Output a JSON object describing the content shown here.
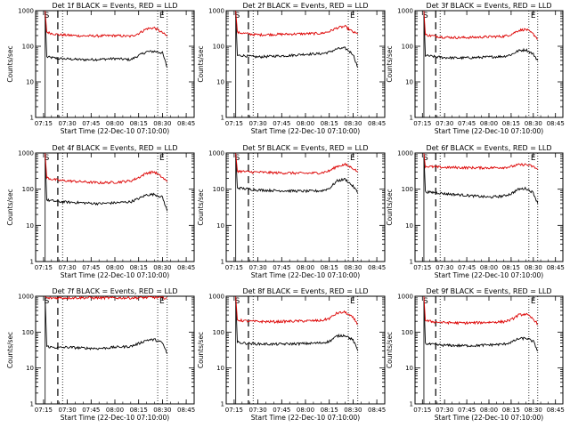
{
  "figure": {
    "xlabel": "Start Time (22-Dec-10 07:10:00)",
    "ylabel": "Counts/sec",
    "ytick_labels": [
      "1",
      "10",
      "100",
      "1000"
    ],
    "xtick_labels": [
      "07:15",
      "07:30",
      "07:45",
      "08:00",
      "08:15",
      "08:30",
      "08:45"
    ],
    "marker_start": "S",
    "marker_end": "E",
    "colors": {
      "events": "#000000",
      "lld": "#dd0000",
      "axes": "#000000"
    }
  },
  "chart_data": [
    {
      "type": "line",
      "title": "Det 1f BLACK = Events, RED = LLD",
      "ylim": [
        1,
        1000
      ],
      "yscale": "log",
      "grid": false,
      "x": [
        "07:17",
        "07:20",
        "07:25",
        "07:30",
        "07:40",
        "07:50",
        "08:00",
        "08:10",
        "08:15",
        "08:20",
        "08:25",
        "08:30",
        "08:33"
      ],
      "series": [
        {
          "name": "Events",
          "values": [
            50,
            48,
            45,
            44,
            42,
            43,
            45,
            42,
            55,
            70,
            72,
            65,
            25
          ]
        },
        {
          "name": "LLD",
          "values": [
            250,
            230,
            210,
            205,
            195,
            195,
            200,
            190,
            230,
            310,
            330,
            240,
            190
          ]
        }
      ]
    },
    {
      "type": "line",
      "title": "Det 2f BLACK = Events, RED = LLD",
      "ylim": [
        1,
        1000
      ],
      "yscale": "log",
      "grid": false,
      "x": [
        "07:17",
        "07:20",
        "07:25",
        "07:30",
        "07:40",
        "07:50",
        "08:00",
        "08:10",
        "08:15",
        "08:20",
        "08:25",
        "08:30",
        "08:33"
      ],
      "series": [
        {
          "name": "Events",
          "values": [
            55,
            55,
            52,
            50,
            53,
            55,
            60,
            62,
            68,
            85,
            88,
            60,
            25
          ]
        },
        {
          "name": "LLD",
          "values": [
            245,
            235,
            220,
            210,
            215,
            220,
            225,
            230,
            260,
            330,
            360,
            250,
            220
          ]
        }
      ]
    },
    {
      "type": "line",
      "title": "Det 3f BLACK = Events, RED = LLD",
      "ylim": [
        1,
        1000
      ],
      "yscale": "log",
      "grid": false,
      "x": [
        "07:17",
        "07:20",
        "07:25",
        "07:30",
        "07:40",
        "07:50",
        "08:00",
        "08:10",
        "08:15",
        "08:20",
        "08:25",
        "08:30",
        "08:33"
      ],
      "series": [
        {
          "name": "Events",
          "values": [
            55,
            53,
            50,
            48,
            47,
            48,
            50,
            52,
            58,
            75,
            80,
            60,
            40
          ]
        },
        {
          "name": "LLD",
          "values": [
            210,
            200,
            190,
            180,
            175,
            178,
            185,
            190,
            215,
            280,
            300,
            220,
            160
          ]
        }
      ]
    },
    {
      "type": "line",
      "title": "Det 4f BLACK = Events, RED = LLD",
      "ylim": [
        1,
        1000
      ],
      "yscale": "log",
      "grid": false,
      "x": [
        "07:17",
        "07:20",
        "07:25",
        "07:30",
        "07:40",
        "07:50",
        "08:00",
        "08:10",
        "08:15",
        "08:20",
        "08:25",
        "08:30",
        "08:33"
      ],
      "series": [
        {
          "name": "Events",
          "values": [
            50,
            48,
            45,
            44,
            42,
            40,
            42,
            45,
            55,
            70,
            72,
            60,
            25
          ]
        },
        {
          "name": "LLD",
          "values": [
            210,
            190,
            175,
            170,
            160,
            150,
            155,
            170,
            210,
            280,
            300,
            210,
            160
          ]
        }
      ]
    },
    {
      "type": "line",
      "title": "Det 5f BLACK = Events, RED = LLD",
      "ylim": [
        1,
        1000
      ],
      "yscale": "log",
      "grid": false,
      "x": [
        "07:17",
        "07:20",
        "07:25",
        "07:30",
        "07:40",
        "07:50",
        "08:00",
        "08:10",
        "08:15",
        "08:20",
        "08:25",
        "08:30",
        "08:33"
      ],
      "series": [
        {
          "name": "Events",
          "values": [
            110,
            105,
            100,
            95,
            92,
            90,
            88,
            90,
            105,
            170,
            190,
            120,
            80
          ]
        },
        {
          "name": "LLD",
          "values": [
            320,
            310,
            300,
            295,
            285,
            280,
            275,
            285,
            320,
            430,
            480,
            380,
            300
          ]
        }
      ]
    },
    {
      "type": "line",
      "title": "Det 6f BLACK = Events, RED = LLD",
      "ylim": [
        1,
        1000
      ],
      "yscale": "log",
      "grid": false,
      "x": [
        "07:17",
        "07:20",
        "07:25",
        "07:30",
        "07:40",
        "07:50",
        "08:00",
        "08:10",
        "08:15",
        "08:20",
        "08:25",
        "08:30",
        "08:33"
      ],
      "series": [
        {
          "name": "Events",
          "values": [
            85,
            82,
            80,
            75,
            70,
            65,
            60,
            65,
            75,
            100,
            105,
            80,
            40
          ]
        },
        {
          "name": "LLD",
          "values": [
            430,
            420,
            410,
            400,
            395,
            390,
            390,
            400,
            420,
            470,
            480,
            420,
            350
          ]
        }
      ]
    },
    {
      "type": "line",
      "title": "Det 7f BLACK = Events, RED = LLD",
      "ylim": [
        1,
        1000
      ],
      "yscale": "log",
      "grid": false,
      "x": [
        "07:17",
        "07:20",
        "07:25",
        "07:30",
        "07:40",
        "07:50",
        "08:00",
        "08:10",
        "08:15",
        "08:20",
        "08:25",
        "08:30",
        "08:33"
      ],
      "series": [
        {
          "name": "Events",
          "values": [
            40,
            38,
            37,
            38,
            36,
            35,
            38,
            40,
            48,
            60,
            62,
            50,
            25
          ]
        },
        {
          "name": "LLD",
          "values": [
            880,
            890,
            900,
            900,
            910,
            900,
            900,
            900,
            910,
            920,
            930,
            900,
            900
          ]
        }
      ]
    },
    {
      "type": "line",
      "title": "Det 8f BLACK = Events, RED = LLD",
      "ylim": [
        1,
        1000
      ],
      "yscale": "log",
      "grid": false,
      "x": [
        "07:17",
        "07:20",
        "07:25",
        "07:30",
        "07:40",
        "07:50",
        "08:00",
        "08:10",
        "08:15",
        "08:20",
        "08:25",
        "08:30",
        "08:33"
      ],
      "series": [
        {
          "name": "Events",
          "values": [
            52,
            50,
            48,
            47,
            46,
            47,
            48,
            50,
            55,
            78,
            82,
            60,
            30
          ]
        },
        {
          "name": "LLD",
          "values": [
            220,
            210,
            200,
            198,
            195,
            200,
            205,
            210,
            240,
            340,
            360,
            250,
            170
          ]
        }
      ]
    },
    {
      "type": "line",
      "title": "Det 9f BLACK = Events, RED = LLD",
      "ylim": [
        1,
        1000
      ],
      "yscale": "log",
      "grid": false,
      "x": [
        "07:17",
        "07:20",
        "07:25",
        "07:30",
        "07:40",
        "07:50",
        "08:00",
        "08:10",
        "08:15",
        "08:20",
        "08:25",
        "08:30",
        "08:33"
      ],
      "series": [
        {
          "name": "Events",
          "values": [
            48,
            46,
            44,
            43,
            42,
            42,
            44,
            46,
            52,
            65,
            68,
            55,
            30
          ]
        },
        {
          "name": "LLD",
          "values": [
            210,
            200,
            190,
            185,
            180,
            182,
            188,
            195,
            220,
            300,
            320,
            230,
            170
          ]
        }
      ]
    }
  ]
}
